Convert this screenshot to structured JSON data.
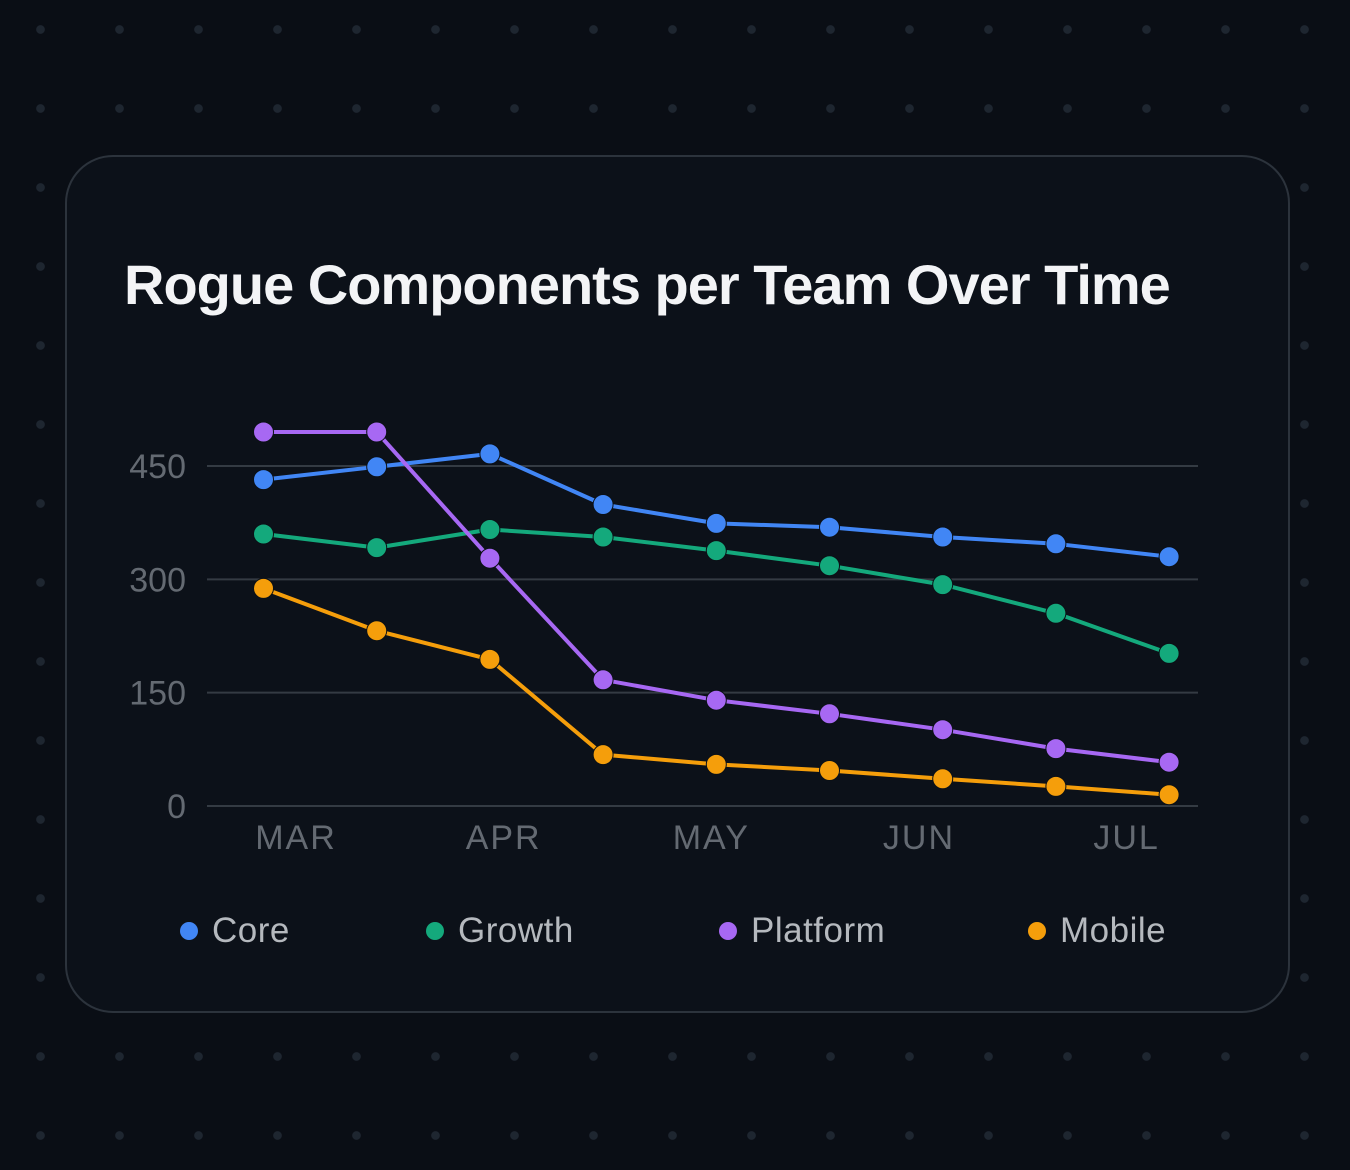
{
  "chart_data": {
    "type": "line",
    "title": "Rogue Components per Team Over Time",
    "x_tick_labels": [
      "MAR",
      "APR",
      "MAY",
      "JUN",
      "JUL"
    ],
    "points_per_series": 9,
    "x_points_per_label": 2,
    "y_ticks": [
      0,
      150,
      300,
      450
    ],
    "ylim": [
      0,
      510
    ],
    "grid": "horizontal",
    "legend_position": "bottom",
    "series": [
      {
        "name": "Core",
        "color": "#4186f5",
        "values": [
          432,
          449,
          466,
          399,
          374,
          369,
          356,
          347,
          330
        ]
      },
      {
        "name": "Growth",
        "color": "#14a97c",
        "values": [
          360,
          342,
          366,
          356,
          338,
          318,
          293,
          255,
          202
        ]
      },
      {
        "name": "Platform",
        "color": "#a768f3",
        "values": [
          495,
          495,
          328,
          167,
          140,
          122,
          101,
          76,
          58
        ]
      },
      {
        "name": "Mobile",
        "color": "#f59e0b",
        "values": [
          288,
          232,
          194,
          68,
          55,
          47,
          36,
          26,
          15
        ]
      }
    ]
  },
  "style_colors": {
    "page_background": "#0a0e15",
    "card_background": "#0c1119",
    "card_border": "#2c333c",
    "gridline": "#343b43",
    "axis_label": "#646a72",
    "legend_text": "#b5b9be",
    "title_text": "#f3f4f6",
    "background_dot": "#1e2630"
  }
}
